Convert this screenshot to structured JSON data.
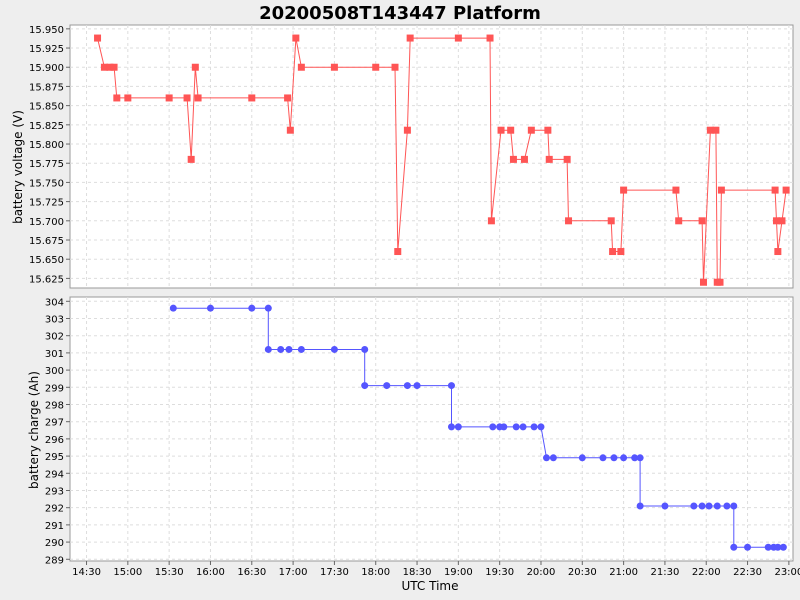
{
  "title": "20200508T143447 Platform",
  "xlabel": "UTC Time",
  "x_ticks": [
    "14:30",
    "15:00",
    "15:30",
    "16:00",
    "16:30",
    "17:00",
    "17:30",
    "18:00",
    "18:30",
    "19:00",
    "19:30",
    "20:00",
    "20:30",
    "21:00",
    "21:30",
    "22:00",
    "22:30",
    "23:00"
  ],
  "colors": {
    "voltage": "#ff5555",
    "charge": "#5555ff",
    "background": "#eeeeee",
    "plot_bg": "#ffffff",
    "grid": "#dddddd"
  },
  "chart_data": [
    {
      "type": "line",
      "ylabel": "battery voltage (V)",
      "ylim": [
        15.6125,
        15.955
      ],
      "y_ticks": [
        "15.625",
        "15.650",
        "15.675",
        "15.700",
        "15.725",
        "15.750",
        "15.775",
        "15.800",
        "15.825",
        "15.850",
        "15.875",
        "15.900",
        "15.925",
        "15.950"
      ],
      "xlim": [
        "14:18",
        "23:03"
      ],
      "grid": true,
      "series": [
        {
          "marker": "square",
          "points": [
            [
              "14:38",
              15.938
            ],
            [
              "14:43",
              15.9
            ],
            [
              "14:47",
              15.9
            ],
            [
              "14:50",
              15.9
            ],
            [
              "14:52",
              15.86
            ],
            [
              "15:00",
              15.86
            ],
            [
              "15:30",
              15.86
            ],
            [
              "15:43",
              15.86
            ],
            [
              "15:46",
              15.78
            ],
            [
              "15:49",
              15.9
            ],
            [
              "15:51",
              15.86
            ],
            [
              "16:30",
              15.86
            ],
            [
              "16:56",
              15.86
            ],
            [
              "16:58",
              15.818
            ],
            [
              "17:02",
              15.938
            ],
            [
              "17:06",
              15.9
            ],
            [
              "17:30",
              15.9
            ],
            [
              "18:00",
              15.9
            ],
            [
              "18:14",
              15.9
            ],
            [
              "18:16",
              15.66
            ],
            [
              "18:23",
              15.818
            ],
            [
              "18:25",
              15.938
            ],
            [
              "19:00",
              15.938
            ],
            [
              "19:23",
              15.938
            ],
            [
              "19:24",
              15.7
            ],
            [
              "19:31",
              15.818
            ],
            [
              "19:38",
              15.818
            ],
            [
              "19:40",
              15.78
            ],
            [
              "19:48",
              15.78
            ],
            [
              "19:53",
              15.818
            ],
            [
              "20:05",
              15.818
            ],
            [
              "20:06",
              15.78
            ],
            [
              "20:19",
              15.78
            ],
            [
              "20:20",
              15.7
            ],
            [
              "20:51",
              15.7
            ],
            [
              "20:52",
              15.66
            ],
            [
              "20:58",
              15.66
            ],
            [
              "21:00",
              15.74
            ],
            [
              "21:38",
              15.74
            ],
            [
              "21:40",
              15.7
            ],
            [
              "21:57",
              15.7
            ],
            [
              "21:58",
              15.62
            ],
            [
              "22:03",
              15.818
            ],
            [
              "22:07",
              15.818
            ],
            [
              "22:08",
              15.62
            ],
            [
              "22:10",
              15.62
            ],
            [
              "22:11",
              15.74
            ],
            [
              "22:50",
              15.74
            ],
            [
              "22:51",
              15.7
            ],
            [
              "22:52",
              15.66
            ],
            [
              "22:55",
              15.7
            ],
            [
              "22:58",
              15.74
            ]
          ]
        }
      ]
    },
    {
      "type": "line",
      "ylabel": "battery charge (Ah)",
      "ylim": [
        288.9,
        304.25
      ],
      "y_ticks": [
        "289",
        "290",
        "291",
        "292",
        "293",
        "294",
        "295",
        "296",
        "297",
        "298",
        "299",
        "300",
        "301",
        "302",
        "303",
        "304"
      ],
      "xlim": [
        "14:18",
        "23:03"
      ],
      "grid": true,
      "series": [
        {
          "marker": "circle",
          "points": [
            [
              "15:33",
              303.6
            ],
            [
              "16:00",
              303.6
            ],
            [
              "16:30",
              303.6
            ],
            [
              "16:42",
              303.6
            ],
            [
              "16:42",
              301.2
            ],
            [
              "16:51",
              301.2
            ],
            [
              "16:57",
              301.2
            ],
            [
              "17:06",
              301.2
            ],
            [
              "17:30",
              301.2
            ],
            [
              "17:52",
              301.2
            ],
            [
              "17:52",
              299.1
            ],
            [
              "18:08",
              299.1
            ],
            [
              "18:23",
              299.1
            ],
            [
              "18:30",
              299.1
            ],
            [
              "18:55",
              299.1
            ],
            [
              "18:55",
              296.7
            ],
            [
              "19:00",
              296.7
            ],
            [
              "19:25",
              296.7
            ],
            [
              "19:30",
              296.7
            ],
            [
              "19:33",
              296.7
            ],
            [
              "19:42",
              296.7
            ],
            [
              "19:47",
              296.7
            ],
            [
              "19:55",
              296.7
            ],
            [
              "20:00",
              296.7
            ],
            [
              "20:04",
              294.9
            ],
            [
              "20:09",
              294.9
            ],
            [
              "20:30",
              294.9
            ],
            [
              "20:45",
              294.9
            ],
            [
              "20:53",
              294.9
            ],
            [
              "21:00",
              294.9
            ],
            [
              "21:08",
              294.9
            ],
            [
              "21:12",
              294.9
            ],
            [
              "21:12",
              292.1
            ],
            [
              "21:30",
              292.1
            ],
            [
              "21:51",
              292.1
            ],
            [
              "21:57",
              292.1
            ],
            [
              "22:02",
              292.1
            ],
            [
              "22:08",
              292.1
            ],
            [
              "22:15",
              292.1
            ],
            [
              "22:20",
              292.1
            ],
            [
              "22:20",
              289.7
            ],
            [
              "22:30",
              289.7
            ],
            [
              "22:45",
              289.7
            ],
            [
              "22:49",
              289.7
            ],
            [
              "22:52",
              289.7
            ],
            [
              "22:56",
              289.7
            ]
          ]
        }
      ]
    }
  ]
}
